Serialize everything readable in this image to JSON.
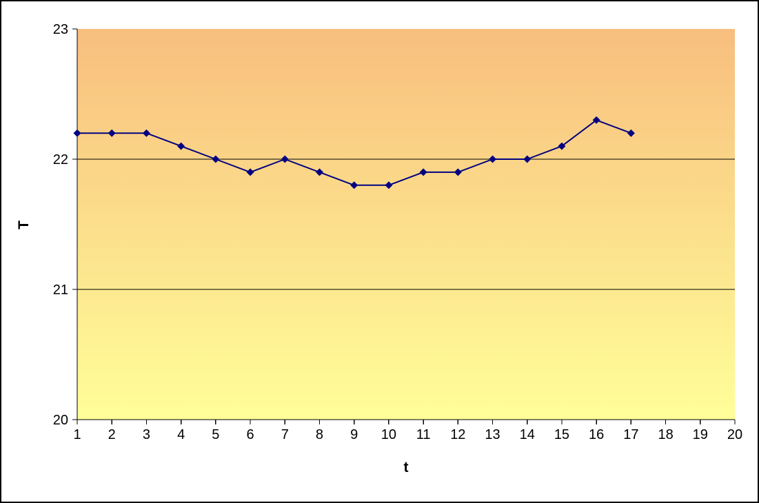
{
  "chart_data": {
    "type": "line",
    "title": "",
    "xlabel": "t",
    "ylabel": "T",
    "x": [
      1,
      2,
      3,
      4,
      5,
      6,
      7,
      8,
      9,
      10,
      11,
      12,
      13,
      14,
      15,
      16,
      17
    ],
    "values": [
      22.2,
      22.2,
      22.2,
      22.1,
      22.0,
      21.9,
      22.0,
      21.9,
      21.8,
      21.8,
      21.9,
      21.9,
      22.0,
      22.0,
      22.1,
      22.3,
      22.2
    ],
    "xlim": [
      1,
      20
    ],
    "ylim": [
      20,
      23
    ],
    "x_ticks": [
      1,
      2,
      3,
      4,
      5,
      6,
      7,
      8,
      9,
      10,
      11,
      12,
      13,
      14,
      15,
      16,
      17,
      18,
      19,
      20
    ],
    "y_ticks": [
      20,
      21,
      22,
      23
    ],
    "gridlines_y": [
      21,
      22
    ],
    "grid": "horizontal",
    "legend": "none",
    "marker": "diamond",
    "line_color": "#000080",
    "marker_color": "#000080",
    "axis_color": "#000000",
    "plot_gradient_top": "#F8BE7E",
    "plot_gradient_bottom": "#FFFF99",
    "background_color": "#FFFFFF",
    "border_color": "#000000"
  }
}
